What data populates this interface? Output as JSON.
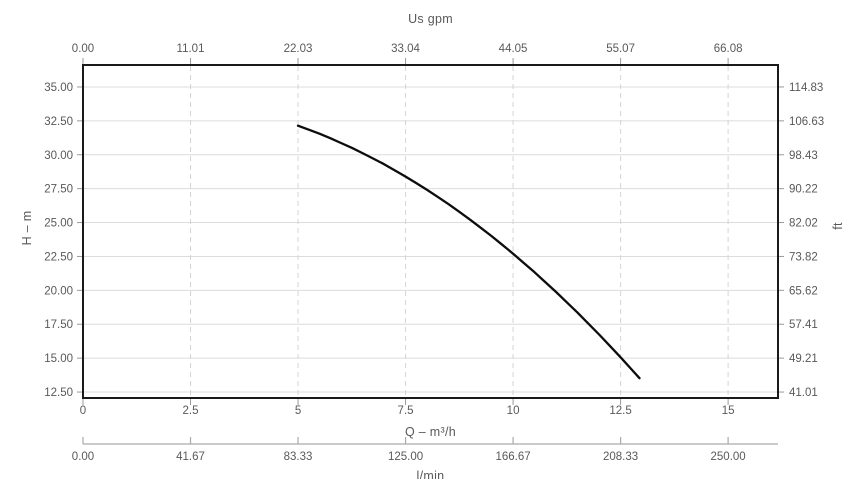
{
  "chart_data": {
    "type": "line",
    "title": "",
    "legend": "none",
    "grid": {
      "horizontal": "solid",
      "vertical": "dashed"
    },
    "xlim": [
      0,
      16.16
    ],
    "ylim": [
      12.06,
      36.62
    ],
    "x_tick_values": [
      0,
      2.5,
      5,
      7.5,
      10,
      12.5,
      15
    ],
    "y_tick_values": [
      35,
      32.5,
      30,
      27.5,
      25,
      22.5,
      20,
      17.5,
      15,
      12.5
    ],
    "axes": {
      "top": {
        "label": "Us gpm",
        "tick_labels": [
          "0.00",
          "11.01",
          "22.03",
          "33.04",
          "44.05",
          "55.07",
          "66.08"
        ]
      },
      "bottom": {
        "label": "Q – m³/h",
        "tick_labels": [
          "0",
          "2.5",
          "5",
          "7.5",
          "10",
          "12.5",
          "15"
        ]
      },
      "bottom2": {
        "label": "l/min",
        "tick_labels": [
          "0.00",
          "41.67",
          "83.33",
          "125.00",
          "166.67",
          "208.33",
          "250.00"
        ]
      },
      "left": {
        "label": "H – m",
        "tick_labels": [
          "35.00",
          "32.50",
          "30.00",
          "27.50",
          "25.00",
          "22.50",
          "20.00",
          "17.50",
          "15.00",
          "12.50"
        ]
      },
      "right": {
        "label": "ft",
        "tick_labels": [
          "114.83",
          "106.63",
          "98.43",
          "90.22",
          "82.02",
          "73.82",
          "65.62",
          "57.41",
          "49.21",
          "41.01"
        ]
      }
    },
    "series": [
      {
        "name": "pump-head-curve",
        "color": "#0d0d0d",
        "points": [
          [
            5.0,
            32.14
          ],
          [
            5.25,
            31.85
          ],
          [
            5.5,
            31.55
          ],
          [
            5.75,
            31.22
          ],
          [
            6.0,
            30.87
          ],
          [
            6.25,
            30.51
          ],
          [
            6.5,
            30.12
          ],
          [
            6.75,
            29.72
          ],
          [
            7.0,
            29.3
          ],
          [
            7.25,
            28.85
          ],
          [
            7.5,
            28.39
          ],
          [
            7.75,
            27.91
          ],
          [
            8.0,
            27.41
          ],
          [
            8.25,
            26.89
          ],
          [
            8.5,
            26.35
          ],
          [
            8.75,
            25.79
          ],
          [
            9.0,
            25.21
          ],
          [
            9.25,
            24.61
          ],
          [
            9.5,
            24.0
          ],
          [
            9.75,
            23.36
          ],
          [
            10.0,
            22.7
          ],
          [
            10.25,
            22.02
          ],
          [
            10.5,
            21.33
          ],
          [
            10.75,
            20.61
          ],
          [
            11.0,
            19.88
          ],
          [
            11.25,
            19.12
          ],
          [
            11.5,
            18.35
          ],
          [
            11.75,
            17.55
          ],
          [
            12.0,
            16.74
          ],
          [
            12.25,
            15.91
          ],
          [
            12.5,
            15.06
          ],
          [
            12.75,
            14.19
          ],
          [
            12.94,
            13.52
          ]
        ]
      }
    ],
    "colors": {
      "text": "#595959",
      "grid_solid": "#dcdcdc",
      "grid_dashed": "#d4d4d4",
      "border": "#1a1a1a",
      "tick": "#999999",
      "secondary_axis": "#aaaaaa",
      "curve": "#0d0d0d"
    }
  }
}
